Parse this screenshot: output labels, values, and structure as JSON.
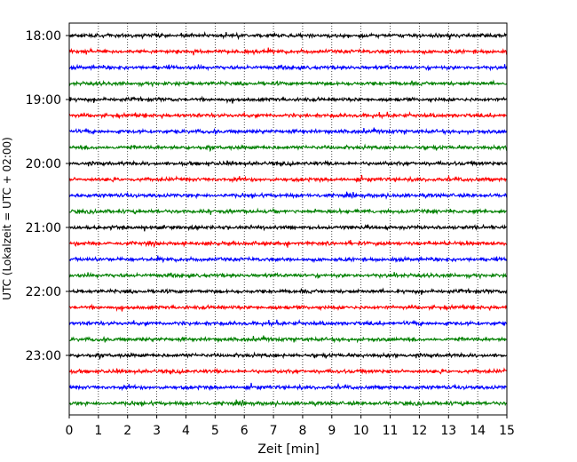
{
  "chart_data": {
    "type": "line",
    "title": "",
    "xlabel": "Zeit  [min]",
    "ylabel": "UTC (Lokalzeit = UTC + 02:00)",
    "xlim": [
      0,
      15
    ],
    "x_ticks": [
      "0",
      "1",
      "2",
      "3",
      "4",
      "5",
      "6",
      "7",
      "8",
      "9",
      "10",
      "11",
      "12",
      "13",
      "14",
      "15"
    ],
    "y_tick_labels": [
      "18:00",
      "19:00",
      "20:00",
      "21:00",
      "22:00",
      "23:00"
    ],
    "grid": "vertical dotted",
    "trace_start": "18:00",
    "trace_interval_minutes": 15,
    "trace_count": 24,
    "trace_colors": [
      "#000000",
      "#ff0000",
      "#0000ff",
      "#008000"
    ]
  }
}
